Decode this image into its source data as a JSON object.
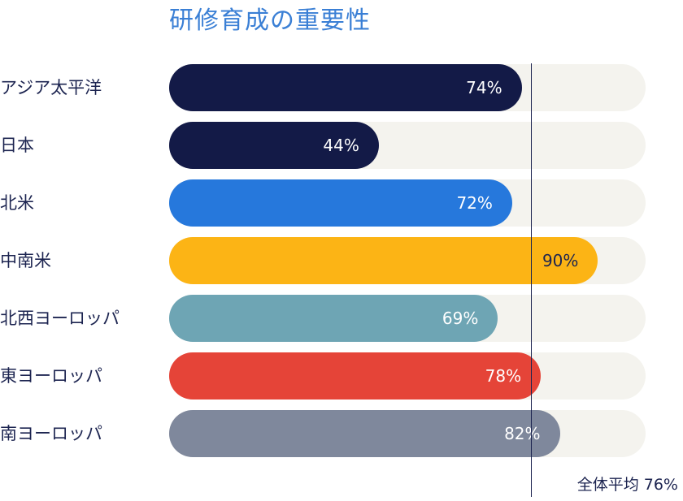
{
  "chart_data": {
    "type": "bar",
    "orientation": "horizontal",
    "title": "研修育成の重要性",
    "xlabel": "",
    "ylabel": "",
    "xlim": [
      0,
      100
    ],
    "categories": [
      "アジア太平洋",
      "日本",
      "北米",
      "中南米",
      "北西ヨーロッパ",
      "東ヨーロッパ",
      "南ヨーロッパ"
    ],
    "values": [
      74,
      44,
      72,
      90,
      69,
      78,
      82
    ],
    "value_labels": [
      "74%",
      "44%",
      "72%",
      "90%",
      "69%",
      "78%",
      "82%"
    ],
    "colors": [
      "#131a47",
      "#131a47",
      "#2678dc",
      "#fcb415",
      "#6ea5b4",
      "#e54438",
      "#7f889c"
    ],
    "label_colors": [
      "#ffffff",
      "#ffffff",
      "#ffffff",
      "#1c2450",
      "#ffffff",
      "#ffffff",
      "#ffffff"
    ],
    "track_color": "#f4f3ee",
    "reference_line": {
      "value": 76,
      "label": "全体平均 76%",
      "color": "#1c2450"
    },
    "grid": false,
    "legend": "none"
  }
}
